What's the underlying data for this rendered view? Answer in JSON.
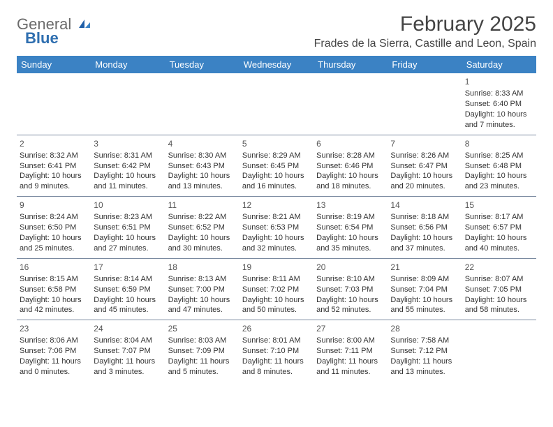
{
  "brand": {
    "word1": "General",
    "word2": "Blue"
  },
  "title": "February 2025",
  "location": "Frades de la Sierra, Castille and Leon, Spain",
  "colors": {
    "header_bg": "#3b82c4",
    "header_text": "#ffffff",
    "rule": "#7a8aa0",
    "logo_gray": "#6b6b6b",
    "logo_blue": "#2f6fb0"
  },
  "dayHeaders": [
    "Sunday",
    "Monday",
    "Tuesday",
    "Wednesday",
    "Thursday",
    "Friday",
    "Saturday"
  ],
  "weeks": [
    [
      {
        "n": "",
        "sr": "",
        "ss": "",
        "dl": ""
      },
      {
        "n": "",
        "sr": "",
        "ss": "",
        "dl": ""
      },
      {
        "n": "",
        "sr": "",
        "ss": "",
        "dl": ""
      },
      {
        "n": "",
        "sr": "",
        "ss": "",
        "dl": ""
      },
      {
        "n": "",
        "sr": "",
        "ss": "",
        "dl": ""
      },
      {
        "n": "",
        "sr": "",
        "ss": "",
        "dl": ""
      },
      {
        "n": "1",
        "sr": "Sunrise: 8:33 AM",
        "ss": "Sunset: 6:40 PM",
        "dl": "Daylight: 10 hours and 7 minutes."
      }
    ],
    [
      {
        "n": "2",
        "sr": "Sunrise: 8:32 AM",
        "ss": "Sunset: 6:41 PM",
        "dl": "Daylight: 10 hours and 9 minutes."
      },
      {
        "n": "3",
        "sr": "Sunrise: 8:31 AM",
        "ss": "Sunset: 6:42 PM",
        "dl": "Daylight: 10 hours and 11 minutes."
      },
      {
        "n": "4",
        "sr": "Sunrise: 8:30 AM",
        "ss": "Sunset: 6:43 PM",
        "dl": "Daylight: 10 hours and 13 minutes."
      },
      {
        "n": "5",
        "sr": "Sunrise: 8:29 AM",
        "ss": "Sunset: 6:45 PM",
        "dl": "Daylight: 10 hours and 16 minutes."
      },
      {
        "n": "6",
        "sr": "Sunrise: 8:28 AM",
        "ss": "Sunset: 6:46 PM",
        "dl": "Daylight: 10 hours and 18 minutes."
      },
      {
        "n": "7",
        "sr": "Sunrise: 8:26 AM",
        "ss": "Sunset: 6:47 PM",
        "dl": "Daylight: 10 hours and 20 minutes."
      },
      {
        "n": "8",
        "sr": "Sunrise: 8:25 AM",
        "ss": "Sunset: 6:48 PM",
        "dl": "Daylight: 10 hours and 23 minutes."
      }
    ],
    [
      {
        "n": "9",
        "sr": "Sunrise: 8:24 AM",
        "ss": "Sunset: 6:50 PM",
        "dl": "Daylight: 10 hours and 25 minutes."
      },
      {
        "n": "10",
        "sr": "Sunrise: 8:23 AM",
        "ss": "Sunset: 6:51 PM",
        "dl": "Daylight: 10 hours and 27 minutes."
      },
      {
        "n": "11",
        "sr": "Sunrise: 8:22 AM",
        "ss": "Sunset: 6:52 PM",
        "dl": "Daylight: 10 hours and 30 minutes."
      },
      {
        "n": "12",
        "sr": "Sunrise: 8:21 AM",
        "ss": "Sunset: 6:53 PM",
        "dl": "Daylight: 10 hours and 32 minutes."
      },
      {
        "n": "13",
        "sr": "Sunrise: 8:19 AM",
        "ss": "Sunset: 6:54 PM",
        "dl": "Daylight: 10 hours and 35 minutes."
      },
      {
        "n": "14",
        "sr": "Sunrise: 8:18 AM",
        "ss": "Sunset: 6:56 PM",
        "dl": "Daylight: 10 hours and 37 minutes."
      },
      {
        "n": "15",
        "sr": "Sunrise: 8:17 AM",
        "ss": "Sunset: 6:57 PM",
        "dl": "Daylight: 10 hours and 40 minutes."
      }
    ],
    [
      {
        "n": "16",
        "sr": "Sunrise: 8:15 AM",
        "ss": "Sunset: 6:58 PM",
        "dl": "Daylight: 10 hours and 42 minutes."
      },
      {
        "n": "17",
        "sr": "Sunrise: 8:14 AM",
        "ss": "Sunset: 6:59 PM",
        "dl": "Daylight: 10 hours and 45 minutes."
      },
      {
        "n": "18",
        "sr": "Sunrise: 8:13 AM",
        "ss": "Sunset: 7:00 PM",
        "dl": "Daylight: 10 hours and 47 minutes."
      },
      {
        "n": "19",
        "sr": "Sunrise: 8:11 AM",
        "ss": "Sunset: 7:02 PM",
        "dl": "Daylight: 10 hours and 50 minutes."
      },
      {
        "n": "20",
        "sr": "Sunrise: 8:10 AM",
        "ss": "Sunset: 7:03 PM",
        "dl": "Daylight: 10 hours and 52 minutes."
      },
      {
        "n": "21",
        "sr": "Sunrise: 8:09 AM",
        "ss": "Sunset: 7:04 PM",
        "dl": "Daylight: 10 hours and 55 minutes."
      },
      {
        "n": "22",
        "sr": "Sunrise: 8:07 AM",
        "ss": "Sunset: 7:05 PM",
        "dl": "Daylight: 10 hours and 58 minutes."
      }
    ],
    [
      {
        "n": "23",
        "sr": "Sunrise: 8:06 AM",
        "ss": "Sunset: 7:06 PM",
        "dl": "Daylight: 11 hours and 0 minutes."
      },
      {
        "n": "24",
        "sr": "Sunrise: 8:04 AM",
        "ss": "Sunset: 7:07 PM",
        "dl": "Daylight: 11 hours and 3 minutes."
      },
      {
        "n": "25",
        "sr": "Sunrise: 8:03 AM",
        "ss": "Sunset: 7:09 PM",
        "dl": "Daylight: 11 hours and 5 minutes."
      },
      {
        "n": "26",
        "sr": "Sunrise: 8:01 AM",
        "ss": "Sunset: 7:10 PM",
        "dl": "Daylight: 11 hours and 8 minutes."
      },
      {
        "n": "27",
        "sr": "Sunrise: 8:00 AM",
        "ss": "Sunset: 7:11 PM",
        "dl": "Daylight: 11 hours and 11 minutes."
      },
      {
        "n": "28",
        "sr": "Sunrise: 7:58 AM",
        "ss": "Sunset: 7:12 PM",
        "dl": "Daylight: 11 hours and 13 minutes."
      },
      {
        "n": "",
        "sr": "",
        "ss": "",
        "dl": ""
      }
    ]
  ]
}
